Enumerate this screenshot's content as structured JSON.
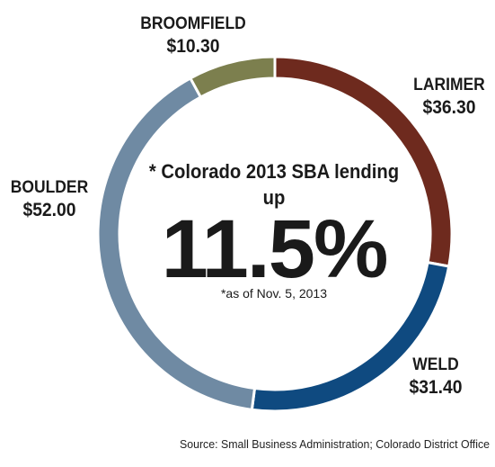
{
  "chart_data": {
    "type": "pie",
    "categories": [
      "LARIMER",
      "WELD",
      "BOULDER",
      "BROOMFIELD"
    ],
    "values": [
      36.3,
      31.4,
      52.0,
      10.3
    ],
    "display_values": [
      "$36.30",
      "$31.40",
      "$52.00",
      "$10.30"
    ],
    "colors": [
      "#6e2a1e",
      "#0f4a80",
      "#6f8aa3",
      "#7c7f4e"
    ],
    "center_headline": "* Colorado 2013 SBA lending up",
    "center_value": "11.5%",
    "center_note": "*as of Nov. 5, 2013",
    "source": "Source: Small Business Administration; Colorado District Office"
  }
}
